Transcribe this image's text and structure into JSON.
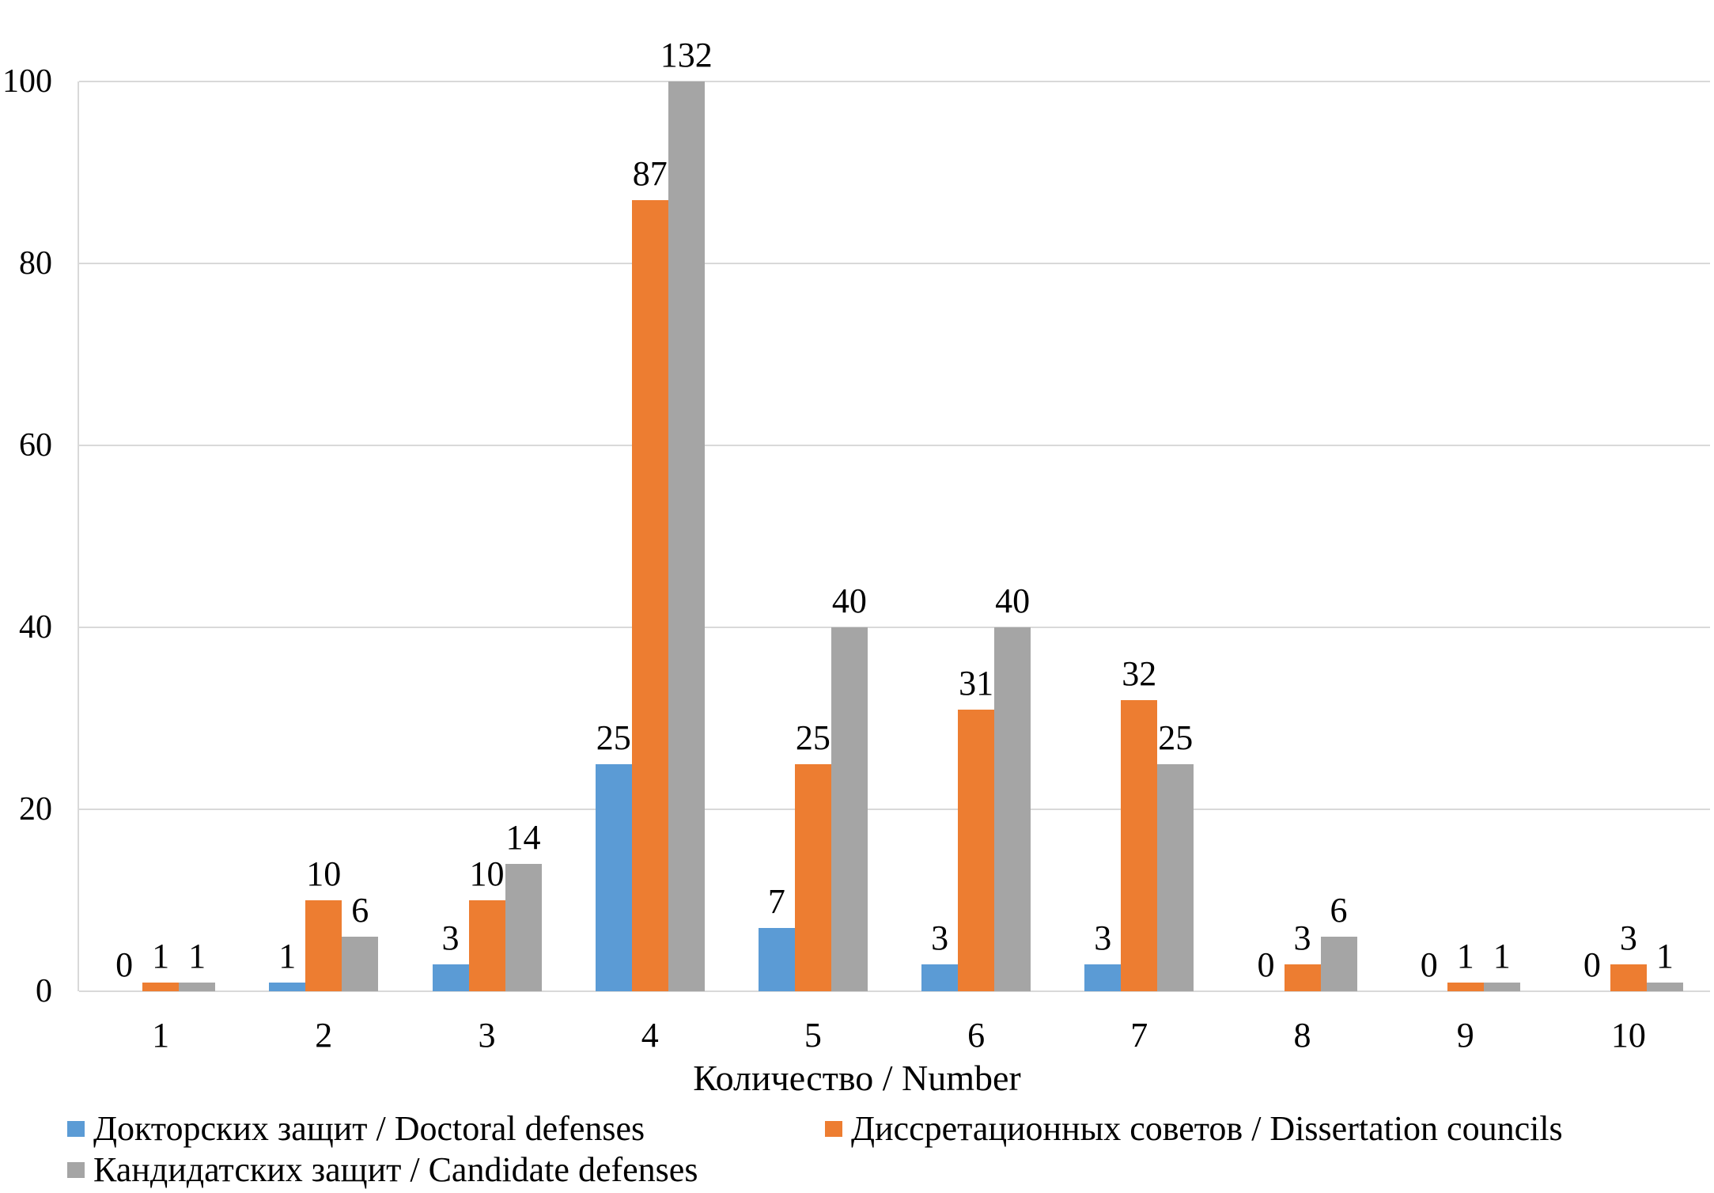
{
  "chart_data": {
    "type": "bar",
    "title": "",
    "xlabel": "Количество / Number",
    "ylabel": "",
    "categories": [
      "1",
      "2",
      "3",
      "4",
      "5",
      "6",
      "7",
      "8",
      "9",
      "10"
    ],
    "series": [
      {
        "name": "Докторских защит / Doctoral defenses",
        "color": "#5B9BD5",
        "values": [
          0,
          1,
          3,
          25,
          7,
          3,
          3,
          0,
          0,
          0
        ]
      },
      {
        "name": "Диссретационных советов / Dissertation councils",
        "color": "#ED7D31",
        "values": [
          1,
          10,
          10,
          87,
          25,
          31,
          32,
          3,
          1,
          3
        ]
      },
      {
        "name": "Кандидатских защит / Candidate defenses",
        "color": "#A5A5A5",
        "values": [
          1,
          6,
          14,
          132,
          40,
          40,
          25,
          6,
          1,
          1
        ]
      }
    ],
    "ylim": [
      0,
      100
    ],
    "yticks": [
      "0",
      "20",
      "40",
      "60",
      "80",
      "100"
    ],
    "grid": true,
    "legend_position": "bottom",
    "data_labels": true,
    "clip_bars_at_ymax": true
  },
  "colors": {
    "gridline": "#D9D9D9",
    "axis_line": "#D9D9D9",
    "text": "#000000",
    "background": "#FFFFFF"
  }
}
